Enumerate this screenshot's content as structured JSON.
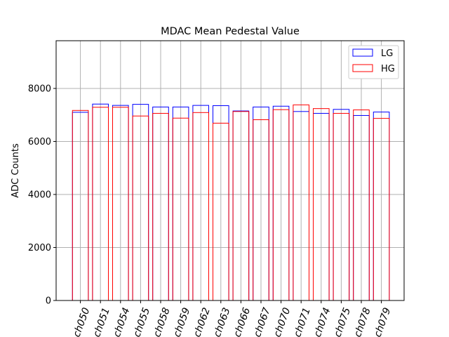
{
  "chart_data": {
    "type": "bar",
    "title": "MDAC Mean Pedestal Value",
    "xlabel": "",
    "ylabel": "ADC Counts",
    "ylim": [
      0,
      9800
    ],
    "yticks": [
      0,
      2000,
      4000,
      6000,
      8000
    ],
    "ytick_labels": [
      "0",
      "2000",
      "4000",
      "6000",
      "8000"
    ],
    "grid": true,
    "legend_position": "top-right",
    "categories": [
      "ch050",
      "ch051",
      "ch054",
      "ch055",
      "ch058",
      "ch059",
      "ch062",
      "ch063",
      "ch066",
      "ch067",
      "ch070",
      "ch071",
      "ch074",
      "ch075",
      "ch078",
      "ch079"
    ],
    "series": [
      {
        "name": "LG",
        "color": "#0000ff",
        "values": [
          7100,
          7410,
          7360,
          7400,
          7300,
          7300,
          7360,
          7350,
          7150,
          7300,
          7330,
          7130,
          7060,
          7210,
          6980,
          7110
        ]
      },
      {
        "name": "HG",
        "color": "#ff0000",
        "values": [
          7170,
          7290,
          7290,
          6960,
          7060,
          6880,
          7090,
          6690,
          7130,
          6820,
          7200,
          7380,
          7240,
          7060,
          7190,
          6870
        ]
      }
    ]
  }
}
